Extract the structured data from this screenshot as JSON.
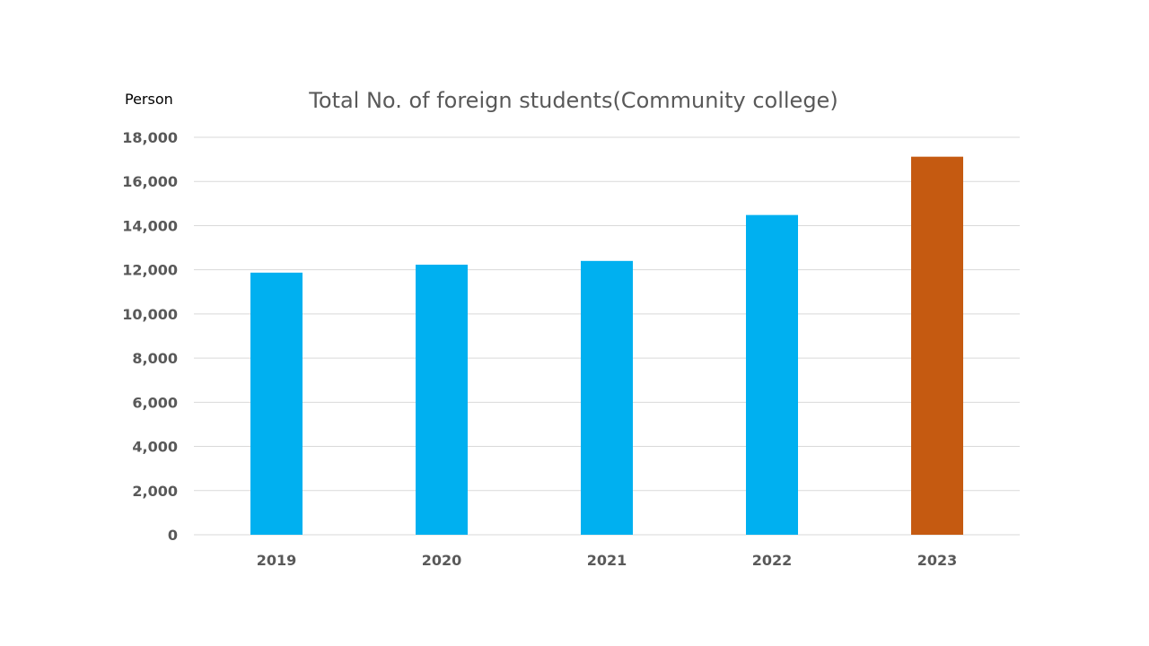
{
  "chart_data": {
    "type": "bar",
    "title": "Total No. of foreign students(Community college)",
    "unit_label": "Person",
    "categories": [
      "2019",
      "2020",
      "2021",
      "2022",
      "2023"
    ],
    "values": [
      11870,
      12230,
      12400,
      14480,
      17120
    ],
    "ylim": [
      0,
      18000
    ],
    "yticks": [
      0,
      2000,
      4000,
      6000,
      8000,
      10000,
      12000,
      14000,
      16000,
      18000
    ],
    "ytick_labels": [
      "0",
      "2,000",
      "4,000",
      "6,000",
      "8,000",
      "10,000",
      "12,000",
      "14,000",
      "16,000",
      "18,000"
    ],
    "grid": true,
    "colors": {
      "default_bar": "#00B0F0",
      "highlight_bar": "#C55A11",
      "gridline": "#D9D9D9",
      "axis_text": "#595959"
    },
    "highlight_category": "2023"
  }
}
